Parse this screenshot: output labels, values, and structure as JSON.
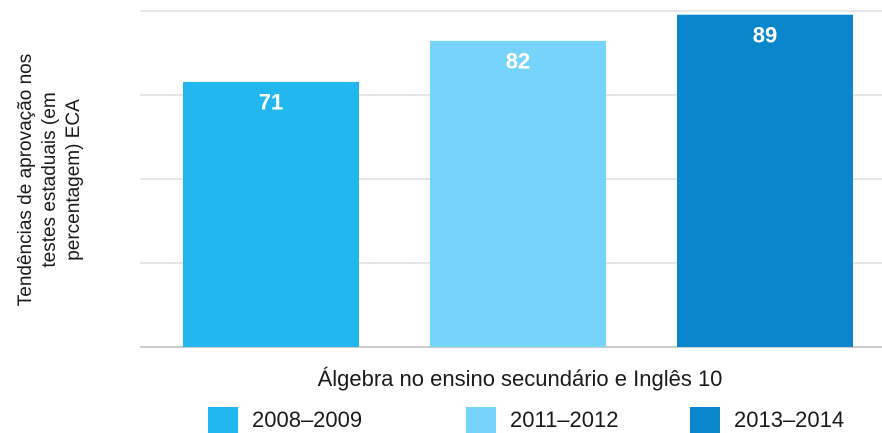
{
  "chart_data": {
    "type": "bar",
    "ylabel": [
      "Tendências de aprovação nos",
      "testes estaduais (em",
      "percentagem) ECA"
    ],
    "categories": [
      "Álgebra no ensino secundário e Inglês 10"
    ],
    "series": [
      {
        "name": "2008–2009",
        "color": "#22b8ef",
        "values": [
          71
        ]
      },
      {
        "name": "2011–2012",
        "color": "#76d4fa",
        "values": [
          82
        ]
      },
      {
        "name": "2013–2014",
        "color": "#0a87cc",
        "values": [
          89
        ]
      }
    ],
    "ylim": [
      0,
      90
    ],
    "yticks": [
      0,
      22.5,
      45,
      67.5,
      90
    ],
    "grid": true,
    "legend": "bottom"
  }
}
